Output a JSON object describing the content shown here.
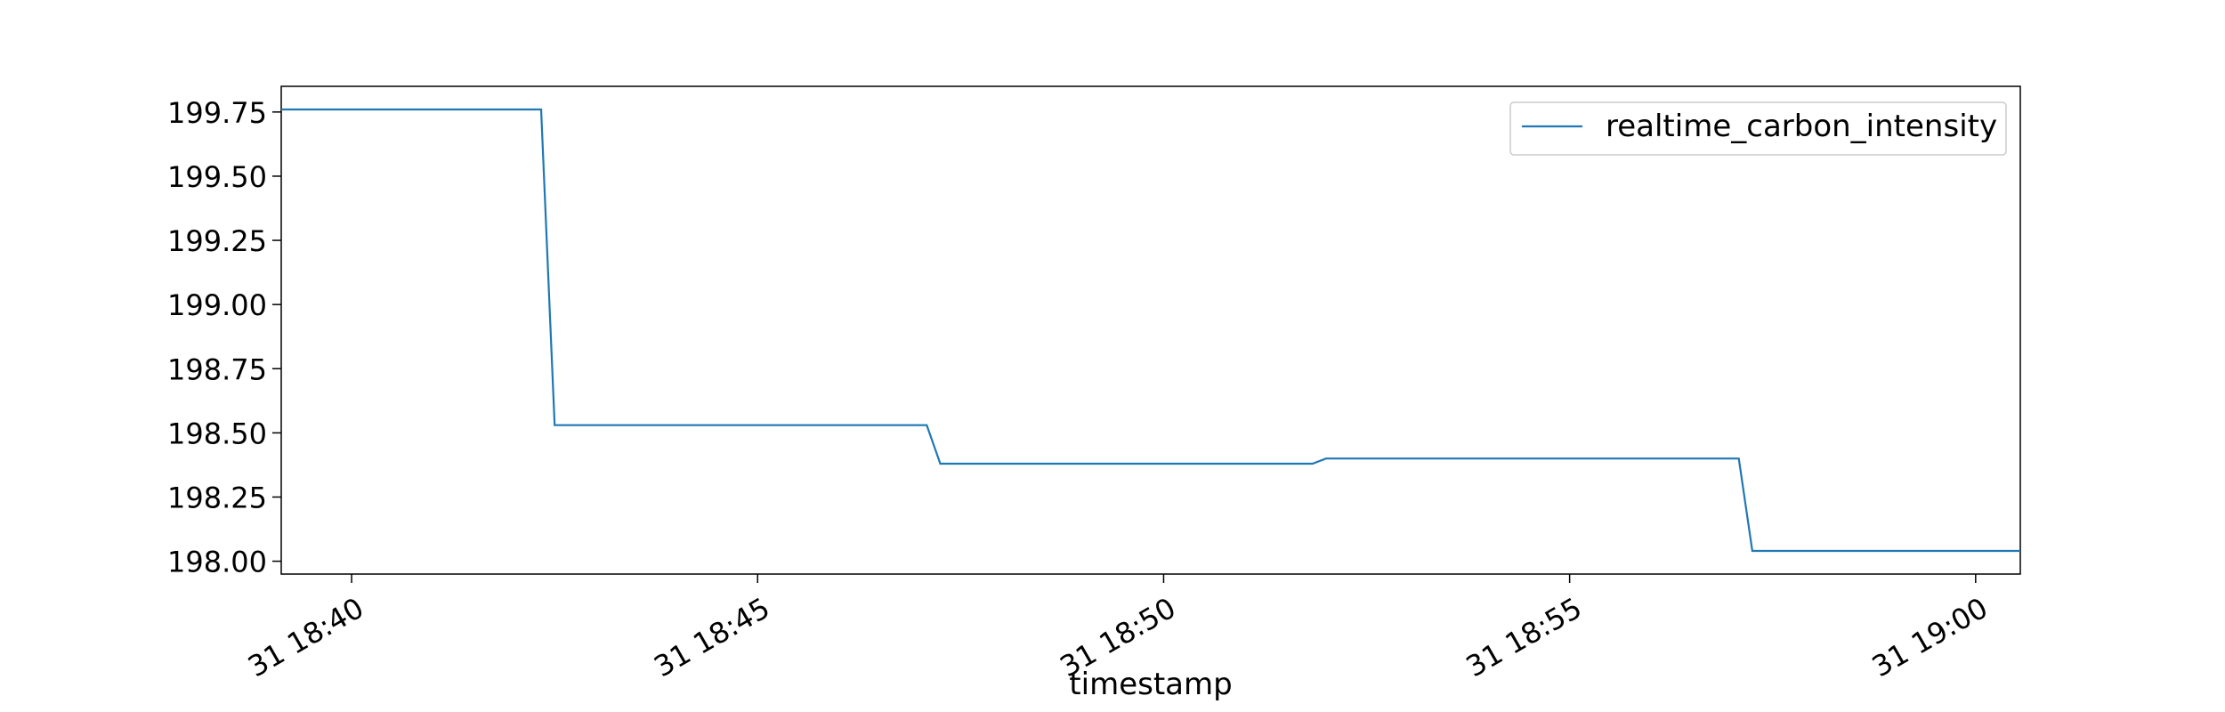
{
  "chart_data": {
    "type": "line",
    "title": "",
    "xlabel": "timestamp",
    "ylabel": "",
    "x_ticks": [
      "31 18:40",
      "31 18:45",
      "31 18:50",
      "31 18:55",
      "31 19:00"
    ],
    "y_ticks": [
      "198.00",
      "198.25",
      "198.50",
      "198.75",
      "199.00",
      "199.25",
      "199.50",
      "199.75"
    ],
    "xlim": [
      "18:39:08",
      "19:00:33"
    ],
    "ylim": [
      197.95,
      199.85
    ],
    "grid": false,
    "legend_position": "top-right",
    "series": [
      {
        "name": "realtime_carbon_intensity",
        "color": "#1f77b4",
        "x": [
          "18:39:08",
          "18:42:20",
          "18:42:30",
          "18:47:05",
          "18:47:15",
          "18:51:50",
          "18:52:00",
          "18:57:05",
          "18:57:15",
          "19:00:33"
        ],
        "y": [
          199.76,
          199.76,
          198.53,
          198.53,
          198.38,
          198.38,
          198.4,
          198.4,
          198.04,
          198.04
        ]
      }
    ]
  }
}
